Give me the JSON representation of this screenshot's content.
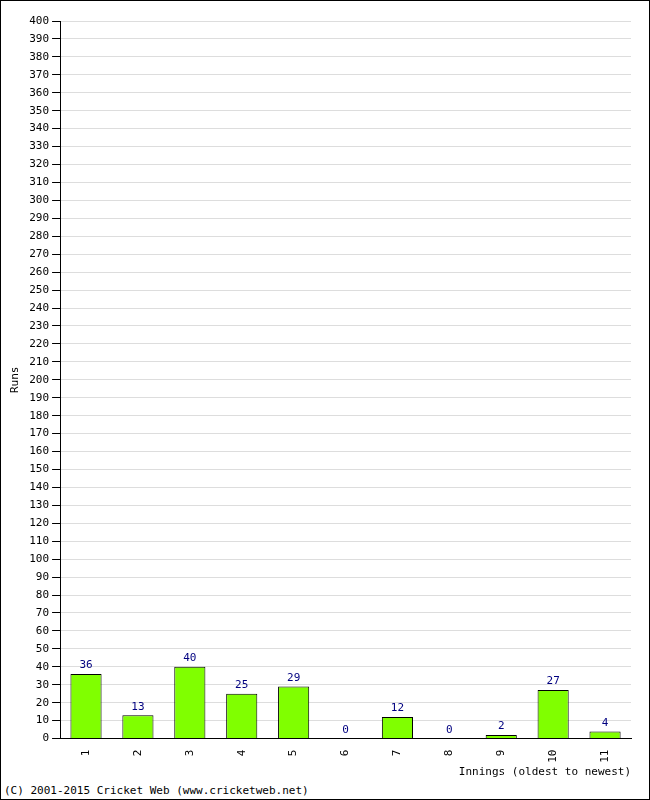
{
  "chart_data": {
    "type": "bar",
    "categories": [
      "1",
      "2",
      "3",
      "4",
      "5",
      "6",
      "7",
      "8",
      "9",
      "10",
      "11"
    ],
    "values": [
      36,
      13,
      40,
      25,
      29,
      0,
      12,
      0,
      2,
      27,
      4
    ],
    "color": "#80ff00",
    "x_label": "Innings (oldest to newest)",
    "y_label": "Runs",
    "annotation": "(C) 2001-2015 Cricket Web (www.cricketweb.net)",
    "ylim": [
      0,
      400
    ],
    "yticks": [
      0,
      10,
      20,
      30,
      40,
      50,
      60,
      70,
      80,
      90,
      100,
      110,
      120,
      130,
      140,
      150,
      160,
      170,
      180,
      190,
      200,
      210,
      220,
      230,
      240,
      250,
      260,
      270,
      280,
      290,
      300,
      310,
      320,
      330,
      340,
      350,
      360,
      370,
      380,
      390,
      400
    ],
    "grid": true,
    "data_labels": true
  }
}
